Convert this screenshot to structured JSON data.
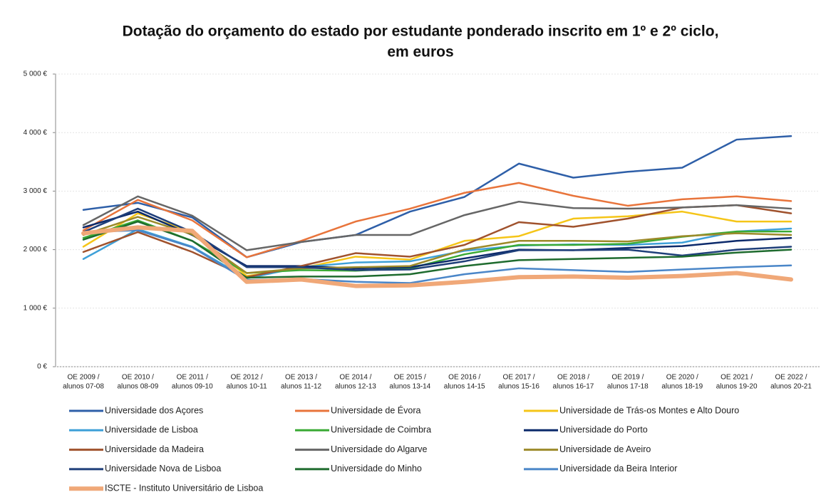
{
  "chart_data": {
    "type": "line",
    "title": [
      "Dotação do orçamento do estado por estudante ponderado inscrito em 1º e 2º ciclo,",
      "em euros"
    ],
    "categories": [
      [
        "OE 2009 /",
        "alunos 07-08"
      ],
      [
        "OE 2010 /",
        "alunos 08-09"
      ],
      [
        "OE 2011 /",
        "alunos 09-10"
      ],
      [
        "OE 2012 /",
        "alunos 10-11"
      ],
      [
        "OE 2013 /",
        "alunos 11-12"
      ],
      [
        "OE 2014 /",
        "alunos 12-13"
      ],
      [
        "OE 2015 /",
        "alunos 13-14"
      ],
      [
        "OE 2016 /",
        "alunos 14-15"
      ],
      [
        "OE 2017 /",
        "alunos 15-16"
      ],
      [
        "OE 2018 /",
        "alunos 16-17"
      ],
      [
        "OE 2019 /",
        "alunos 17-18"
      ],
      [
        "OE 2020 /",
        "alunos 18-19"
      ],
      [
        "OE 2021 /",
        "alunos 19-20"
      ],
      [
        "OE 2022 /",
        "alunos 20-21"
      ]
    ],
    "ylim": [
      0,
      5000
    ],
    "yticks": [
      {
        "value": 0,
        "label": "0 €"
      },
      {
        "value": 1000,
        "label": "1 000 €"
      },
      {
        "value": 2000,
        "label": "2 000 €"
      },
      {
        "value": 3000,
        "label": "3 000 €"
      },
      {
        "value": 4000,
        "label": "4 000 €"
      },
      {
        "value": 5000,
        "label": "5 000 €"
      }
    ],
    "grid": true,
    "legend": "bottom",
    "series": [
      {
        "name": "Universidade dos Açores",
        "color": "#2e5fa8",
        "values": [
          2680,
          2800,
          2550,
          1870,
          2130,
          2250,
          2650,
          2900,
          3470,
          3230,
          3330,
          3400,
          3880,
          3940
        ]
      },
      {
        "name": "Universidade de Évora",
        "color": "#e8743b",
        "values": [
          2330,
          2850,
          2500,
          1870,
          2150,
          2480,
          2700,
          2970,
          3140,
          2920,
          2750,
          2860,
          2910,
          2830
        ]
      },
      {
        "name": "Universidade de Trás-os Montes e Alto Douro",
        "color": "#f5c518",
        "values": [
          2050,
          2620,
          2300,
          1550,
          1680,
          1880,
          1830,
          2150,
          2230,
          2530,
          2570,
          2650,
          2480,
          2480
        ]
      },
      {
        "name": "Universidade de Lisboa",
        "color": "#3ea0d8",
        "values": [
          1840,
          2350,
          2050,
          1510,
          1700,
          1780,
          1800,
          1980,
          2070,
          2090,
          2080,
          2120,
          2310,
          2360
        ]
      },
      {
        "name": "Universidade de Coimbra",
        "color": "#3aaa35",
        "values": [
          2200,
          2500,
          2150,
          1600,
          1650,
          1640,
          1680,
          1920,
          2080,
          2080,
          2100,
          2220,
          2310,
          2310
        ]
      },
      {
        "name": "Universidade do Porto",
        "color": "#0c2a6b",
        "values": [
          2380,
          2650,
          2250,
          1720,
          1720,
          1680,
          1700,
          1850,
          2000,
          1990,
          2030,
          2060,
          2150,
          2200
        ]
      },
      {
        "name": "Universidade da Madeira",
        "color": "#a0522d",
        "values": [
          1960,
          2300,
          1960,
          1530,
          1720,
          1940,
          1880,
          2080,
          2470,
          2390,
          2530,
          2720,
          2760,
          2620
        ]
      },
      {
        "name": "Universidade do Algarve",
        "color": "#666666",
        "values": [
          2420,
          2910,
          2580,
          1990,
          2130,
          2250,
          2250,
          2590,
          2820,
          2710,
          2700,
          2720,
          2760,
          2700
        ]
      },
      {
        "name": "Universidade de Aveiro",
        "color": "#9c8a2a",
        "values": [
          2250,
          2560,
          2260,
          1600,
          1680,
          1700,
          1720,
          2000,
          2150,
          2150,
          2140,
          2230,
          2280,
          2250
        ]
      },
      {
        "name": "Universidade Nova de Lisboa",
        "color": "#1f3f7a",
        "values": [
          2300,
          2700,
          2300,
          1700,
          1700,
          1650,
          1660,
          1800,
          1990,
          1990,
          2000,
          1900,
          2000,
          2050
        ]
      },
      {
        "name": "Universidade do Minho",
        "color": "#1e6b2e",
        "values": [
          2170,
          2480,
          2150,
          1520,
          1540,
          1540,
          1580,
          1720,
          1820,
          1840,
          1860,
          1880,
          1950,
          2000
        ]
      },
      {
        "name": "Universidade da Beira Interior",
        "color": "#4a86c8",
        "values": [
          2300,
          2330,
          2040,
          1480,
          1500,
          1450,
          1430,
          1580,
          1680,
          1650,
          1620,
          1660,
          1700,
          1730
        ]
      },
      {
        "name": "ISCTE - Instituto Universitário de Lisboa",
        "color": "#f0a878",
        "linewidth": 6,
        "values": [
          2280,
          2380,
          2320,
          1450,
          1490,
          1380,
          1390,
          1450,
          1530,
          1540,
          1520,
          1550,
          1600,
          1490
        ]
      }
    ]
  }
}
